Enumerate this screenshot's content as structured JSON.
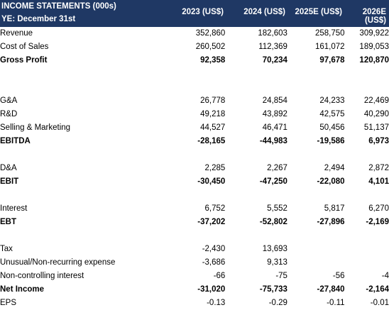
{
  "header": {
    "title": "INCOME STATEMENTS (000s)",
    "subtitle": "YE: December 31st",
    "columns": [
      "2023 (US$)",
      "2024 (US$)",
      "2025E (US$)",
      "2026E (US$)"
    ]
  },
  "rows": [
    {
      "label": "Revenue",
      "values": [
        "352,860",
        "182,603",
        "258,750",
        "309,922"
      ],
      "bold": false
    },
    {
      "label": "Cost of Sales",
      "values": [
        "260,502",
        "112,369",
        "161,072",
        "189,053"
      ],
      "bold": false
    },
    {
      "label": "Gross Profit",
      "values": [
        "92,358",
        "70,234",
        "97,678",
        "120,870"
      ],
      "bold": true
    },
    {
      "spacer": true
    },
    {
      "spacer": true
    },
    {
      "label": "G&A",
      "values": [
        "26,778",
        "24,854",
        "24,233",
        "22,469"
      ],
      "bold": false
    },
    {
      "label": "R&D",
      "values": [
        "49,218",
        "43,892",
        "42,575",
        "40,290"
      ],
      "bold": false
    },
    {
      "label": "Selling & Marketing",
      "values": [
        "44,527",
        "46,471",
        "50,456",
        "51,137"
      ],
      "bold": false
    },
    {
      "label": "EBITDA",
      "values": [
        "-28,165",
        "-44,983",
        "-19,586",
        "6,973"
      ],
      "bold": true
    },
    {
      "spacer": true
    },
    {
      "label": "D&A",
      "values": [
        "2,285",
        "2,267",
        "2,494",
        "2,872"
      ],
      "bold": false
    },
    {
      "label": "EBIT",
      "values": [
        "-30,450",
        "-47,250",
        "-22,080",
        "4,101"
      ],
      "bold": true
    },
    {
      "spacer": true
    },
    {
      "label": "Interest",
      "values": [
        "6,752",
        "5,552",
        "5,817",
        "6,270"
      ],
      "bold": false
    },
    {
      "label": "EBT",
      "values": [
        "-37,202",
        "-52,802",
        "-27,896",
        "-2,169"
      ],
      "bold": true
    },
    {
      "spacer": true
    },
    {
      "label": "Tax",
      "values": [
        "-2,430",
        "13,693",
        "",
        ""
      ],
      "bold": false
    },
    {
      "label": "Unusual/Non-recurring expense",
      "values": [
        "-3,686",
        "9,313",
        "",
        ""
      ],
      "bold": false
    },
    {
      "label": "Non-controlling interest",
      "values": [
        "-66",
        "-75",
        "-56",
        "-4"
      ],
      "bold": false
    },
    {
      "label": "Net Income",
      "values": [
        "-31,020",
        "-75,733",
        "-27,840",
        "-2,164"
      ],
      "bold": true
    },
    {
      "label": "EPS",
      "values": [
        "-0.13",
        "-0.29",
        "-0.11",
        "-0.01"
      ],
      "bold": false
    }
  ],
  "colors": {
    "header_bg": "#1f3864",
    "header_text": "#ffffff"
  }
}
